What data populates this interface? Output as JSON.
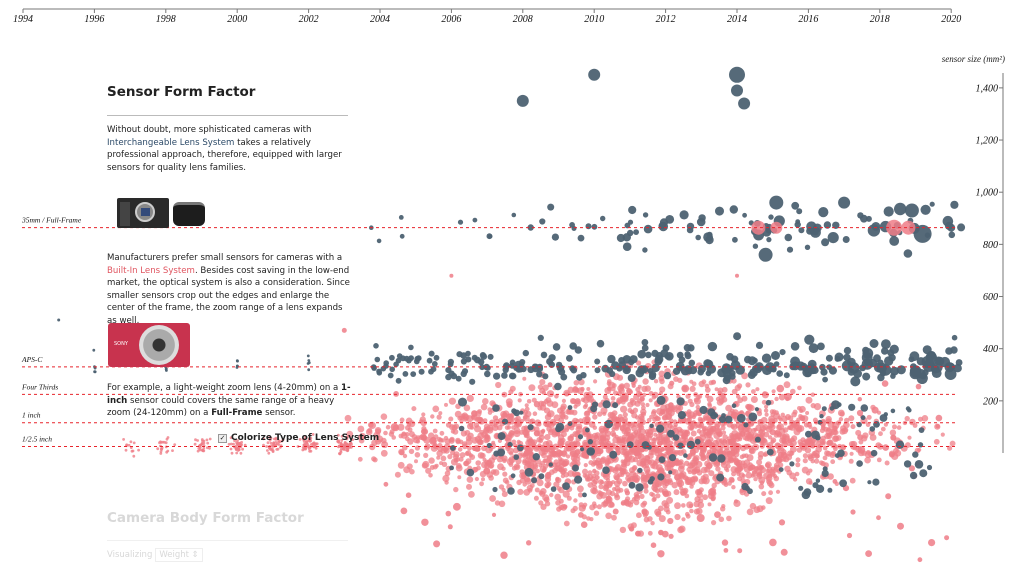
{
  "chart_data": {
    "type": "scatter",
    "x_axis": {
      "position": "top",
      "range": [
        1994,
        2020
      ],
      "ticks": [
        "1994",
        "1996",
        "1998",
        "2000",
        "2002",
        "2004",
        "2006",
        "2008",
        "2010",
        "2012",
        "2014",
        "2016",
        "2018",
        "2020"
      ]
    },
    "y_axis": {
      "position": "right",
      "label": "sensor size (mm²)",
      "range": [
        0,
        1450
      ],
      "ticks": [
        "200",
        "400",
        "600",
        "800",
        "1,000",
        "1,200",
        "1,400"
      ],
      "tick_values": [
        200,
        400,
        600,
        800,
        1000,
        1200,
        1400
      ]
    },
    "reference_lines": [
      {
        "label": "35mm / Full-Frame",
        "value": 864
      },
      {
        "label": "APS-C",
        "value": 330
      },
      {
        "label": "Four Thirds",
        "value": 225
      },
      {
        "label": "1 inch",
        "value": 116
      },
      {
        "label": "1/2.5 inch",
        "value": 25
      }
    ],
    "categories": [
      {
        "key": "interchangeable",
        "color": "#4d6272"
      },
      {
        "key": "built-in",
        "color": "#ef7d87"
      }
    ],
    "highlighted_points": [
      {
        "year": 2008.0,
        "size": 1350,
        "type": "interchangeable",
        "weight": 6
      },
      {
        "year": 2010.0,
        "size": 1450,
        "type": "interchangeable",
        "weight": 6
      },
      {
        "year": 2014.0,
        "size": 1450,
        "type": "interchangeable",
        "weight": 8
      },
      {
        "year": 2014.0,
        "size": 1390,
        "type": "interchangeable",
        "weight": 6
      },
      {
        "year": 2014.2,
        "size": 1340,
        "type": "interchangeable",
        "weight": 6
      },
      {
        "year": 2015.1,
        "size": 960,
        "type": "interchangeable",
        "weight": 7
      },
      {
        "year": 2014.8,
        "size": 760,
        "type": "interchangeable",
        "weight": 7
      },
      {
        "year": 2019.2,
        "size": 840,
        "type": "interchangeable",
        "weight": 9
      },
      {
        "year": 2018.9,
        "size": 930,
        "type": "interchangeable",
        "weight": 7
      },
      {
        "year": 2017.0,
        "size": 960,
        "type": "interchangeable",
        "weight": 6
      },
      {
        "year": 2014.6,
        "size": 864,
        "type": "built-in",
        "weight": 7
      },
      {
        "year": 2015.1,
        "size": 864,
        "type": "built-in",
        "weight": 6
      },
      {
        "year": 2018.4,
        "size": 864,
        "type": "built-in",
        "weight": 8
      },
      {
        "year": 2018.8,
        "size": 864,
        "type": "built-in",
        "weight": 7
      },
      {
        "year": 2020.0,
        "size": 864,
        "type": "interchangeable",
        "weight": 4
      },
      {
        "year": 2020.0,
        "size": 330,
        "type": "interchangeable",
        "weight": 4
      },
      {
        "year": 1995.0,
        "size": 510,
        "type": "interchangeable",
        "weight": 1.5
      },
      {
        "year": 2006.0,
        "size": 680,
        "type": "built-in",
        "weight": 2
      },
      {
        "year": 2014.0,
        "size": 680,
        "type": "built-in",
        "weight": 2
      },
      {
        "year": 2003.0,
        "size": 470,
        "type": "built-in",
        "weight": 2.5
      }
    ]
  },
  "panel": {
    "title": "Sensor Form Factor",
    "p1_before": "Without doubt, more sphisticated cameras with ",
    "p1_link": "Interchangeable Lens System",
    "p1_after": " takes a relatively professional approach, therefore, equipped with larger sensors for quality lens families.",
    "p2_before": "Manufacturers prefer small sensors for cameras with a ",
    "p2_link": "Built-In Lens System",
    "p2_after": ". Besides cost saving in the low-end market, the optical system is also a consideration. Since smaller sensors crop out the edges and enlarge the center of the frame, the zoom range of a lens expands as well.",
    "p3_a": "For example, a light-weight zoom lens (4-20mm) on a ",
    "p3_b": "1-inch",
    "p3_c": " sensor could covers the same range of a heavy zoom (24-120mm) on a ",
    "p3_d": "Full-Frame",
    "p3_e": " sensor.",
    "camera_brand": "SONY",
    "colorize_label": "Colorize Type of Lens System",
    "colorize_checked": true,
    "colorize_mark": "✓"
  },
  "next_section": {
    "title": "Camera Body Form Factor",
    "visualizing_label": "Visualizing",
    "visualizing_value": "Weight ⇕"
  }
}
